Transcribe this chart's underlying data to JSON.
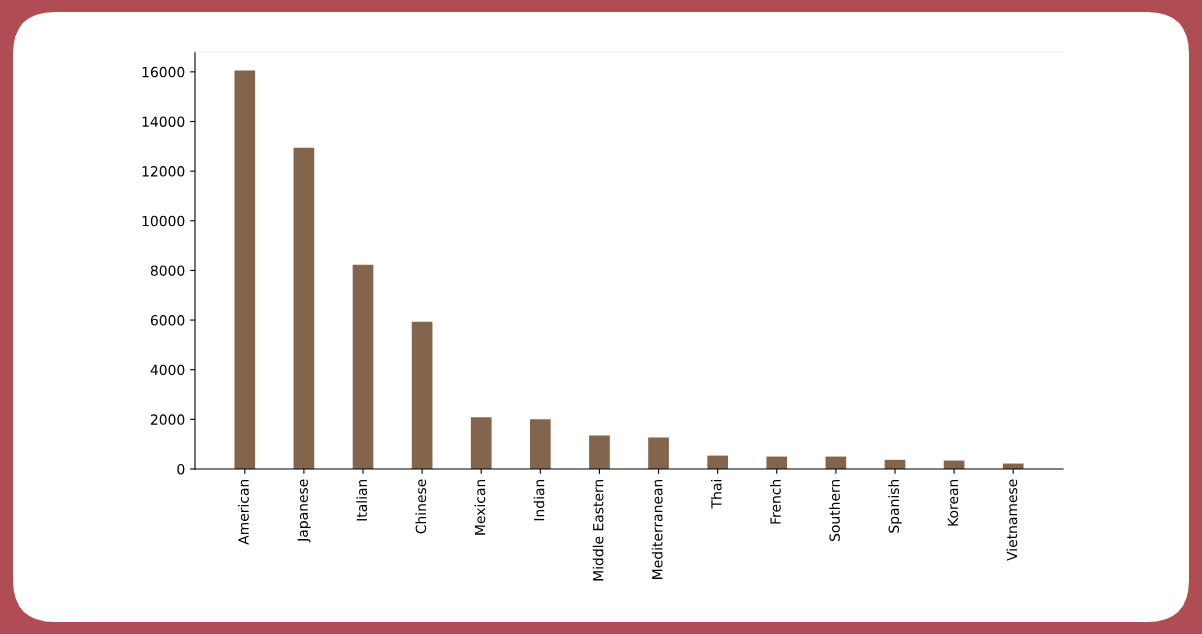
{
  "chart_data": {
    "type": "bar",
    "categories": [
      "American",
      "Japanese",
      "Italian",
      "Chinese",
      "Mexican",
      "Indian",
      "Middle Eastern",
      "Mediterranean",
      "Thai",
      "French",
      "Southern",
      "Spanish",
      "Korean",
      "Vietnamese"
    ],
    "values": [
      16050,
      12940,
      8230,
      5930,
      2080,
      2000,
      1350,
      1270,
      540,
      500,
      500,
      370,
      340,
      220
    ],
    "color": "#83654d",
    "ylim": [
      0,
      16800
    ],
    "yticks": [
      0,
      2000,
      4000,
      6000,
      8000,
      10000,
      12000,
      14000,
      16000
    ],
    "grid": false,
    "legend": false
  }
}
